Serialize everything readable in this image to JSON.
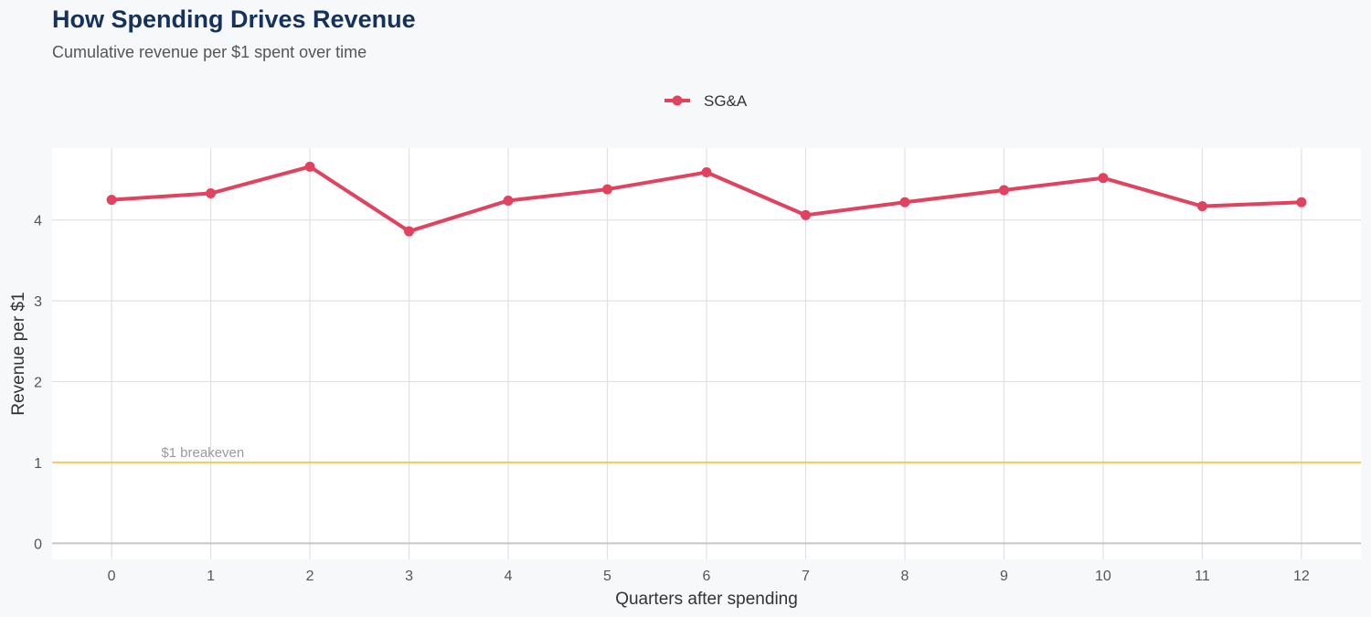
{
  "header": {
    "title": "How Spending Drives Revenue",
    "subtitle": "Cumulative revenue per $1 spent over time"
  },
  "colors": {
    "series": "#e0425f",
    "breakeven": "#f5c85a",
    "grid": "#e1e1e1",
    "panel": "#ffffff",
    "background": "#f7f8fa"
  },
  "chart_data": {
    "type": "line",
    "title": "How Spending Drives Revenue",
    "subtitle": "Cumulative revenue per $1 spent over time",
    "xlabel": "Quarters after spending",
    "ylabel": "Revenue per $1",
    "x": [
      0,
      1,
      2,
      3,
      4,
      5,
      6,
      7,
      8,
      9,
      10,
      11,
      12
    ],
    "series": [
      {
        "name": "SG&A",
        "values": [
          4.25,
          4.33,
          4.66,
          3.86,
          4.24,
          4.38,
          4.59,
          4.06,
          4.22,
          4.37,
          4.52,
          4.17,
          4.22
        ]
      }
    ],
    "xlim": [
      -0.6,
      12.6
    ],
    "ylim": [
      -0.2,
      4.89
    ],
    "yticks": [
      0,
      1,
      2,
      3,
      4
    ],
    "grid": true,
    "legend": "top-center",
    "reference_line": {
      "value": 1,
      "label": "$1 breakeven"
    }
  }
}
